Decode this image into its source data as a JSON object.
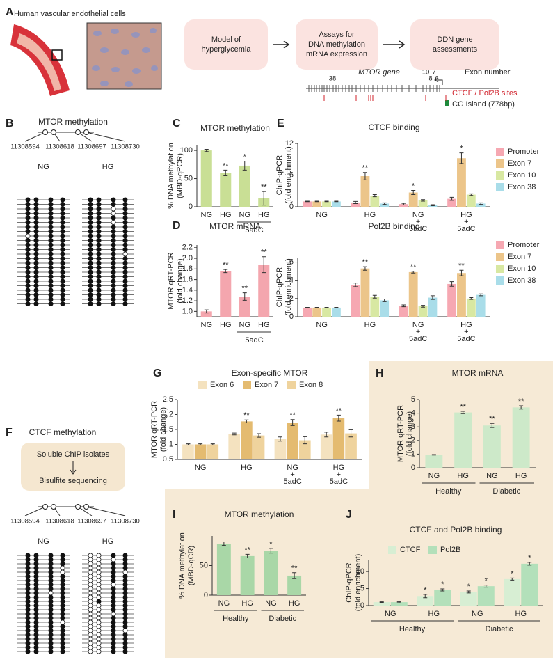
{
  "panel_labels": [
    "A",
    "B",
    "C",
    "D",
    "E",
    "F",
    "G",
    "H",
    "I",
    "J"
  ],
  "panel_a": {
    "cell_label": "Human vascular endothelial cells",
    "steps": [
      [
        "Model of",
        "hyperglycemia"
      ],
      [
        "Assays for",
        "DNA methylation",
        "mRNA expression"
      ],
      [
        "DDN gene",
        "assessments"
      ]
    ]
  },
  "gene_map": {
    "title": "MTOR gene",
    "exons": [
      "38",
      "10",
      "7",
      "8",
      "6"
    ],
    "exon_label": "Exon number",
    "legend": [
      "CTCF / Pol2B sites",
      "CG Island (778bp)"
    ]
  },
  "methylation_B": {
    "title": "MTOR methylation",
    "positions": [
      "11308594",
      "11308618",
      "11308697",
      "11308730"
    ],
    "groups": [
      {
        "label": "NG",
        "rows": [
          [
            1,
            1,
            1,
            1
          ],
          [
            1,
            1,
            1,
            1
          ],
          [
            1,
            1,
            1,
            1
          ],
          [
            1,
            1,
            1,
            1
          ],
          [
            1,
            1,
            1,
            1
          ],
          [
            1,
            1,
            1,
            1
          ],
          [
            1,
            1,
            1,
            1
          ],
          [
            1,
            1,
            1,
            1
          ],
          [
            0,
            1,
            1,
            1
          ],
          [
            1,
            1,
            1,
            1
          ],
          [
            1,
            1,
            1,
            1
          ],
          [
            1,
            1,
            1,
            1
          ],
          [
            1,
            1,
            1,
            1
          ],
          [
            1,
            1,
            1,
            1
          ],
          [
            1,
            1,
            1,
            1
          ],
          [
            1,
            1,
            1,
            1
          ],
          [
            1,
            1,
            1,
            1
          ],
          [
            1,
            1,
            1,
            1
          ],
          [
            1,
            1,
            1,
            1
          ],
          [
            1,
            1,
            1,
            1
          ],
          [
            1,
            1,
            1,
            1
          ],
          [
            1,
            1,
            1,
            1
          ],
          [
            1,
            1,
            1,
            1
          ],
          [
            1,
            1,
            1,
            1
          ]
        ]
      },
      {
        "label": "HG",
        "rows": [
          [
            1,
            1,
            1,
            1
          ],
          [
            1,
            1,
            1,
            1
          ],
          [
            1,
            1,
            0,
            1
          ],
          [
            1,
            1,
            0,
            1
          ],
          [
            1,
            1,
            1,
            1
          ],
          [
            1,
            1,
            0,
            1
          ],
          [
            1,
            1,
            1,
            1
          ],
          [
            1,
            1,
            1,
            1
          ],
          [
            1,
            1,
            1,
            1
          ],
          [
            1,
            1,
            1,
            1
          ],
          [
            1,
            1,
            1,
            1
          ],
          [
            1,
            1,
            1,
            1
          ],
          [
            1,
            1,
            1,
            0
          ],
          [
            1,
            1,
            1,
            1
          ],
          [
            1,
            1,
            1,
            1
          ],
          [
            1,
            1,
            1,
            1
          ],
          [
            1,
            1,
            1,
            1
          ],
          [
            1,
            1,
            1,
            1
          ],
          [
            1,
            1,
            1,
            1
          ],
          [
            1,
            1,
            1,
            1
          ],
          [
            1,
            1,
            1,
            1
          ],
          [
            1,
            1,
            1,
            1
          ],
          [
            1,
            1,
            1,
            1
          ],
          [
            1,
            1,
            1,
            1
          ]
        ]
      }
    ]
  },
  "methylation_F": {
    "title": "CTCF methylation",
    "steps": [
      "Soluble ChIP isolates",
      "Bisulfite sequencing"
    ],
    "positions": [
      "11308594",
      "11308618",
      "11308697",
      "11308730"
    ],
    "groups": [
      {
        "label": "NG",
        "rows": [
          [
            1,
            1,
            1,
            1
          ],
          [
            1,
            1,
            1,
            1
          ],
          [
            1,
            1,
            1,
            1
          ],
          [
            1,
            1,
            1,
            0
          ],
          [
            1,
            1,
            1,
            0
          ],
          [
            1,
            1,
            1,
            1
          ],
          [
            1,
            1,
            1,
            1
          ],
          [
            1,
            1,
            1,
            1
          ],
          [
            1,
            1,
            1,
            1
          ],
          [
            1,
            1,
            0,
            1
          ],
          [
            1,
            1,
            1,
            1
          ],
          [
            1,
            1,
            1,
            1
          ],
          [
            1,
            1,
            1,
            1
          ],
          [
            1,
            1,
            1,
            1
          ],
          [
            1,
            1,
            1,
            1
          ],
          [
            1,
            1,
            1,
            1
          ],
          [
            1,
            1,
            1,
            0
          ],
          [
            1,
            1,
            1,
            1
          ],
          [
            1,
            1,
            1,
            1
          ],
          [
            1,
            1,
            1,
            1
          ],
          [
            1,
            1,
            1,
            1
          ],
          [
            1,
            1,
            1,
            1
          ],
          [
            1,
            1,
            1,
            1
          ],
          [
            1,
            1,
            1,
            1
          ]
        ]
      },
      {
        "label": "HG",
        "rows": [
          [
            0,
            0,
            1,
            1
          ],
          [
            0,
            0,
            0,
            1
          ],
          [
            0,
            0,
            1,
            1
          ],
          [
            0,
            0,
            1,
            1
          ],
          [
            0,
            0,
            1,
            0
          ],
          [
            0,
            0,
            1,
            1
          ],
          [
            0,
            0,
            1,
            1
          ],
          [
            0,
            0,
            0,
            1
          ],
          [
            0,
            0,
            1,
            1
          ],
          [
            0,
            0,
            1,
            1
          ],
          [
            0,
            0,
            1,
            1
          ],
          [
            0,
            1,
            1,
            1
          ],
          [
            0,
            0,
            1,
            1
          ],
          [
            0,
            0,
            1,
            1
          ],
          [
            0,
            0,
            0,
            1
          ],
          [
            0,
            0,
            1,
            1
          ],
          [
            0,
            0,
            1,
            1
          ],
          [
            0,
            0,
            1,
            1
          ],
          [
            0,
            0,
            1,
            0
          ],
          [
            0,
            0,
            1,
            1
          ],
          [
            0,
            0,
            1,
            1
          ],
          [
            0,
            0,
            1,
            1
          ],
          [
            0,
            0,
            1,
            1
          ],
          [
            0,
            0,
            1,
            1
          ]
        ]
      }
    ]
  },
  "chart_data": [
    {
      "type": "bar",
      "title": "MTOR methylation",
      "ylabel": [
        "% DNA methylation",
        "(MBD-qPCR)"
      ],
      "categories": [
        "NG",
        "HG",
        "NG",
        "HG"
      ],
      "category_groups": [
        {
          "label": "5adC",
          "span": [
            2,
            3
          ]
        }
      ],
      "values": [
        100,
        60,
        73,
        15
      ],
      "errors": [
        2,
        5,
        8,
        12
      ],
      "significance": [
        null,
        "**",
        "*",
        "**"
      ],
      "color": "#c9df95",
      "ylim": [
        0,
        110
      ],
      "yticks": [
        0,
        50,
        100
      ]
    },
    {
      "type": "bar",
      "title": "MTOR mRNA",
      "ylabel": [
        "MTOR qRT-PCR",
        "(fold change)"
      ],
      "categories": [
        "NG",
        "HG",
        "NG",
        "HG"
      ],
      "category_groups": [
        {
          "label": "5adC",
          "span": [
            2,
            3
          ]
        }
      ],
      "values": [
        1.0,
        1.76,
        1.28,
        1.88
      ],
      "errors": [
        0.03,
        0.03,
        0.07,
        0.15
      ],
      "significance": [
        null,
        "**",
        "**",
        "**"
      ],
      "color": "#f4a6ae",
      "ylim": [
        0.9,
        2.25
      ],
      "yticks": [
        {
          "value": 1,
          "label": "1.0"
        },
        1.2,
        1.4,
        1.6,
        1.8,
        {
          "value": 2,
          "label": "2.0"
        },
        2.2
      ]
    },
    {
      "type": "bar",
      "title": "CTCF binding",
      "ylabel": [
        "ChIP-qPCR",
        "(fold enrichment)"
      ],
      "categories": [
        [
          "NG"
        ],
        [
          "HG"
        ],
        [
          "NG",
          "+",
          "5adC"
        ],
        [
          "HG",
          "+",
          "5adC"
        ]
      ],
      "legend": "right",
      "ylim": [
        0,
        12
      ],
      "yticks": [
        0,
        6,
        12
      ],
      "series": [
        {
          "name": "Promoter",
          "color": "#f6a8b2",
          "values": [
            1,
            0.8,
            0.5,
            1.5
          ],
          "errors": [
            0.05,
            0.2,
            0.15,
            0.3
          ]
        },
        {
          "name": "Exon 7",
          "color": "#ecc58a",
          "values": [
            1,
            5.8,
            2.7,
            9.2
          ],
          "errors": [
            0.05,
            0.7,
            0.4,
            1.0
          ],
          "significance": [
            null,
            "**",
            "*",
            "*"
          ]
        },
        {
          "name": "Exon 10",
          "color": "#d8e8a2",
          "values": [
            1,
            2.1,
            1.2,
            2.3
          ],
          "errors": [
            0.05,
            0.2,
            0.15,
            0.15
          ]
        },
        {
          "name": "Exon 38",
          "color": "#a9dde9",
          "values": [
            1,
            0.6,
            0.3,
            0.6
          ],
          "errors": [
            0.05,
            0.15,
            0.1,
            0.15
          ]
        }
      ]
    },
    {
      "type": "bar",
      "title": "Pol2B binding",
      "ylabel": [
        "ChIP-qPCR",
        "(fold enrichment)"
      ],
      "categories": [
        [
          "NG"
        ],
        [
          "HG"
        ],
        [
          "NG",
          "+",
          "5adC"
        ],
        [
          "HG",
          "+",
          "5adC"
        ]
      ],
      "legend": "right",
      "ylim": [
        0,
        6.5
      ],
      "yticks": [
        0,
        2,
        4,
        6
      ],
      "series": [
        {
          "name": "Promoter",
          "color": "#f6a8b2",
          "values": [
            1,
            3.5,
            1.2,
            3.6
          ],
          "errors": [
            0.03,
            0.2,
            0.1,
            0.25
          ]
        },
        {
          "name": "Exon 7",
          "color": "#ecc58a",
          "values": [
            1,
            5.3,
            4.9,
            4.8
          ],
          "errors": [
            0.03,
            0.2,
            0.1,
            0.3
          ],
          "significance": [
            null,
            "**",
            "**",
            "**"
          ]
        },
        {
          "name": "Exon 10",
          "color": "#d8e8a2",
          "values": [
            1,
            2.2,
            1.15,
            2.0
          ],
          "errors": [
            0.03,
            0.15,
            0.1,
            0.1
          ]
        },
        {
          "name": "Exon 38",
          "color": "#a9dde9",
          "values": [
            1,
            1.8,
            2.1,
            2.4
          ],
          "errors": [
            0.03,
            0.15,
            0.2,
            0.1
          ]
        }
      ]
    },
    {
      "type": "bar",
      "title": "Exon-specific MTOR",
      "ylabel": [
        "MTOR qRT-PCR",
        "(fold change)"
      ],
      "categories": [
        [
          "NG"
        ],
        [
          "HG"
        ],
        [
          "NG",
          "+",
          "5adC"
        ],
        [
          "HG",
          "+",
          "5adC"
        ]
      ],
      "legend": "top",
      "ylim": [
        0.5,
        2.5
      ],
      "yticks": [
        0.5,
        1,
        1.5,
        2,
        2.5
      ],
      "series": [
        {
          "name": "Exon 6",
          "color": "#f4e2bf",
          "values": [
            1,
            1.35,
            1.18,
            1.33
          ],
          "errors": [
            0.02,
            0.03,
            0.07,
            0.08
          ]
        },
        {
          "name": "Exon 7",
          "color": "#e4bb70",
          "values": [
            1,
            1.77,
            1.73,
            1.88
          ],
          "errors": [
            0.02,
            0.05,
            0.1,
            0.1
          ],
          "significance": [
            null,
            "**",
            "**",
            "**"
          ]
        },
        {
          "name": "Exon 8",
          "color": "#efd39d",
          "values": [
            1,
            1.3,
            1.14,
            1.37
          ],
          "errors": [
            0.02,
            0.06,
            0.12,
            0.12
          ]
        }
      ]
    },
    {
      "type": "bar",
      "title": "MTOR mRNA",
      "ylabel": [
        "MTOR qRT-PCR",
        "(fold change)"
      ],
      "categories": [
        "NG",
        "HG",
        "NG",
        "HG"
      ],
      "category_groups": [
        {
          "label": "Healthy",
          "span": [
            0,
            1
          ]
        },
        {
          "label": "Diabetic",
          "span": [
            2,
            3
          ]
        }
      ],
      "values": [
        0.95,
        4.05,
        3.1,
        4.42
      ],
      "errors": [
        0.02,
        0.08,
        0.15,
        0.12
      ],
      "significance": [
        null,
        "**",
        "**",
        "**"
      ],
      "color": "#cde9c9",
      "ylim": [
        0,
        5
      ],
      "yticks": [
        0,
        1,
        2,
        3,
        4,
        5
      ]
    },
    {
      "type": "bar",
      "title": "MTOR methylation",
      "ylabel": [
        "% DNA methylation",
        "(MBD-qCR)"
      ],
      "categories": [
        "NG",
        "HG",
        "NG",
        "HG"
      ],
      "category_groups": [
        {
          "label": "Healthy",
          "span": [
            0,
            1
          ]
        },
        {
          "label": "Diabetic",
          "span": [
            2,
            3
          ]
        }
      ],
      "values": [
        87,
        66,
        75,
        33
      ],
      "errors": [
        3,
        3,
        4,
        5
      ],
      "significance": [
        null,
        "**",
        "*",
        "**"
      ],
      "color": "#a9d7a7",
      "ylim": [
        0,
        100
      ],
      "yticks": [
        0,
        50
      ]
    },
    {
      "type": "bar",
      "title": "CTCF and Pol2B binding",
      "ylabel": [
        "ChIP-qPCR",
        "(fold enrichment)"
      ],
      "categories": [
        "NG",
        "HG",
        "NG",
        "HG"
      ],
      "category_groups": [
        {
          "label": "Healthy",
          "span": [
            0,
            1
          ]
        },
        {
          "label": "Diabetic",
          "span": [
            2,
            3
          ]
        }
      ],
      "legend": "top",
      "ylim": [
        0,
        13.5
      ],
      "yticks": [
        0,
        5,
        10
      ],
      "series": [
        {
          "name": "CTCF",
          "color": "#d7eed3",
          "values": [
            1,
            2.8,
            4,
            7.8
          ],
          "errors": [
            0.1,
            0.5,
            0.3,
            0.3
          ],
          "significance": [
            null,
            "*",
            "*",
            "*"
          ]
        },
        {
          "name": "Pol2B",
          "color": "#b3e0ba",
          "values": [
            1,
            4.6,
            5.7,
            12.3
          ],
          "errors": [
            0.15,
            0.3,
            0.3,
            0.4
          ],
          "significance": [
            null,
            "*",
            "*",
            "*"
          ]
        }
      ]
    }
  ]
}
